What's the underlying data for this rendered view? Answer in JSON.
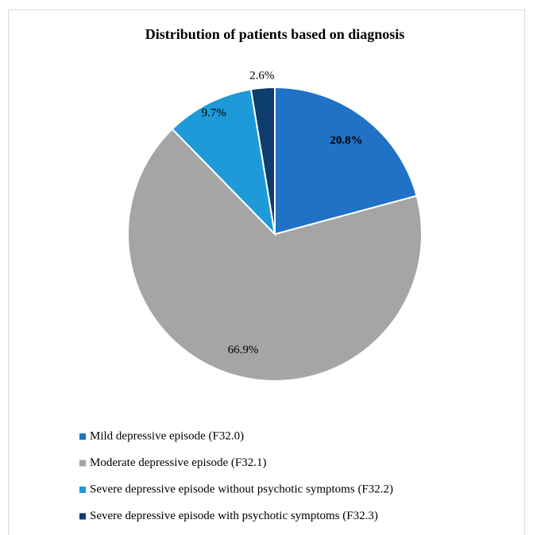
{
  "chart_data": {
    "type": "pie",
    "title": "Distribution of patients based on diagnosis",
    "categories": [
      "Mild depressive episode (F32.0)",
      "Moderate depressive episode (F32.1)",
      "Severe depressive episode without psychotic symptoms (F32.2)",
      "Severe depressive episode with psychotic symptoms (F32.3)"
    ],
    "values": [
      20.8,
      66.9,
      9.7,
      2.6
    ],
    "value_labels": [
      "20.8%",
      "66.9%",
      "9.7%",
      "2.6%"
    ],
    "colors": [
      "#1f72c6",
      "#a5a5a5",
      "#1e9ad8",
      "#0d3d6d"
    ],
    "legend": "bottom"
  }
}
